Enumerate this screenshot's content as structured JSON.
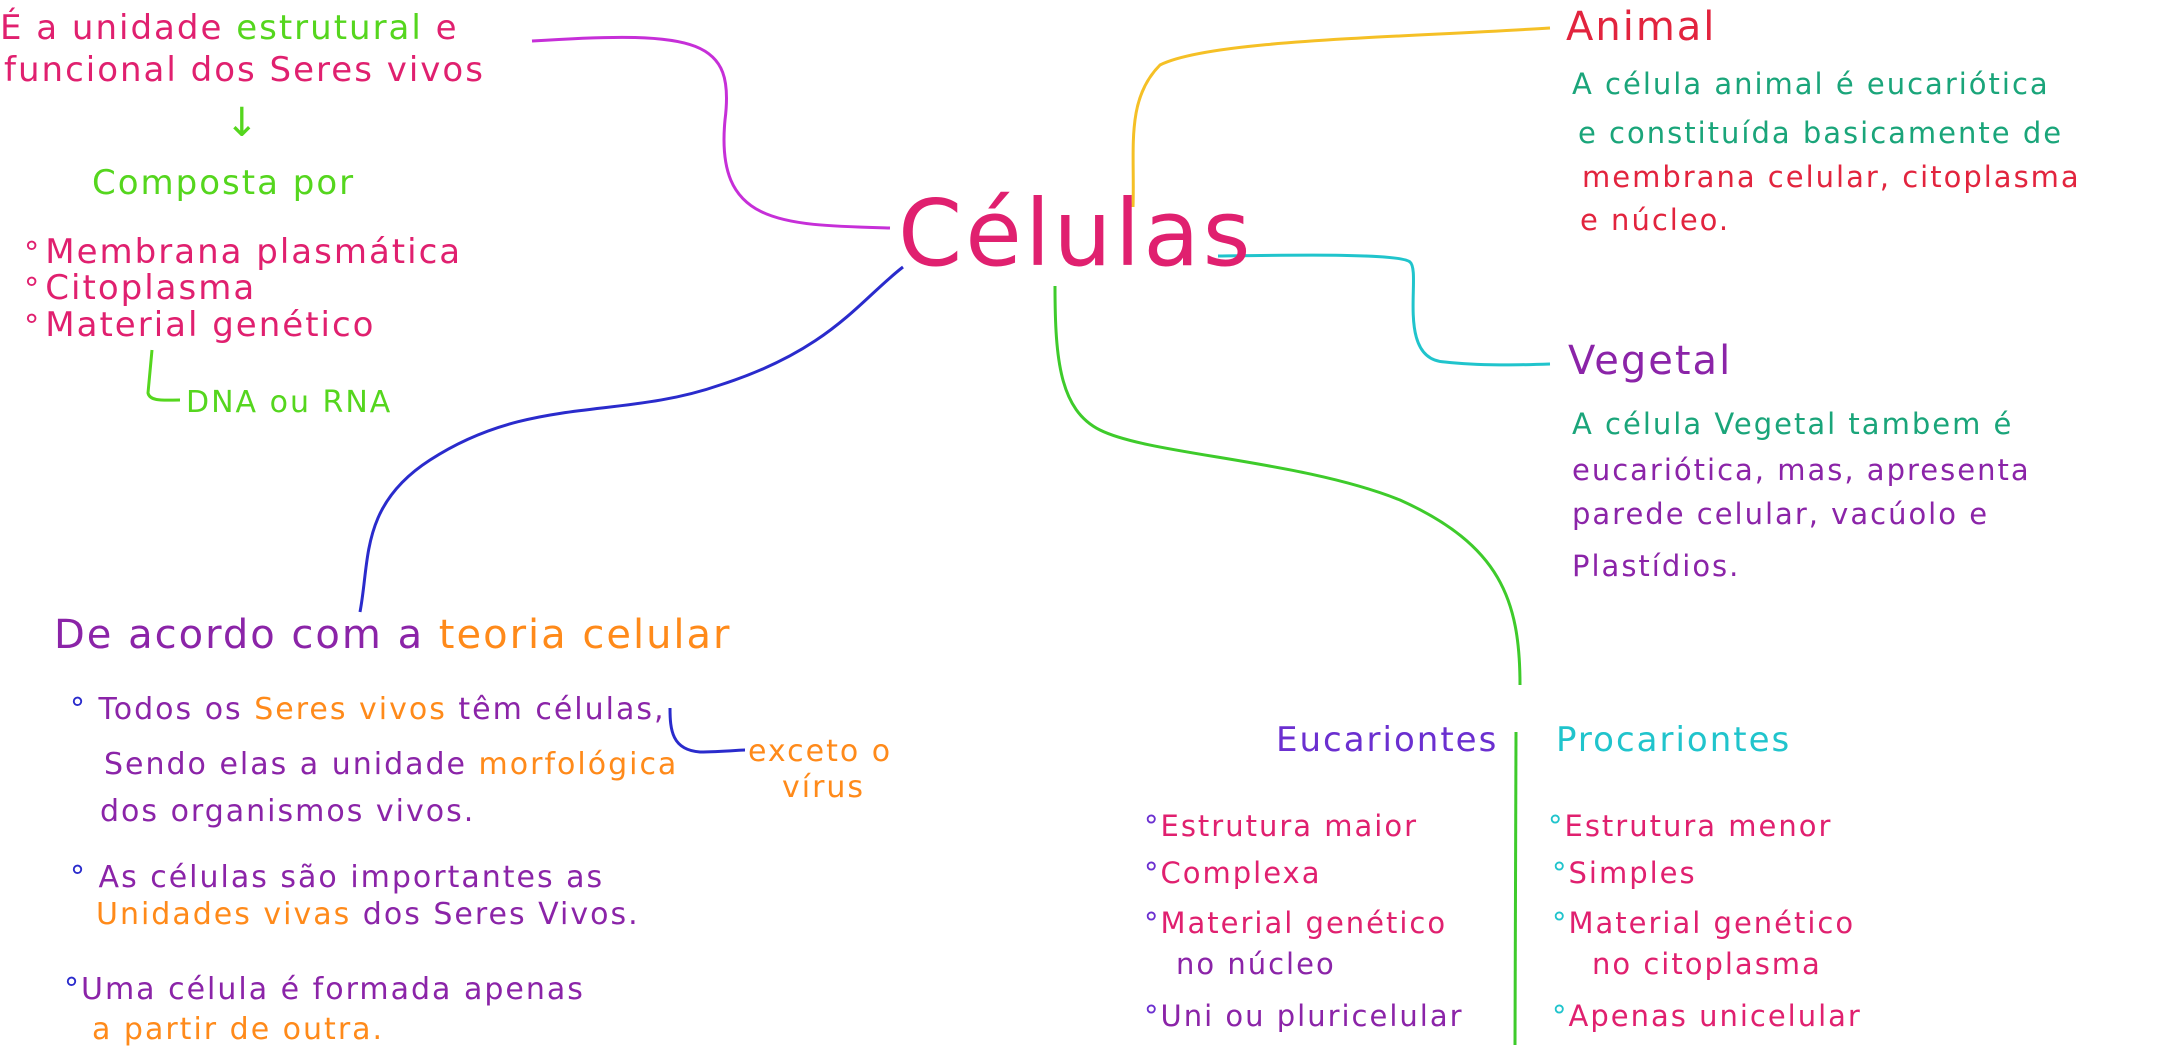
{
  "colors": {
    "magenta": "#e0206f",
    "purple": "#a82cd0",
    "violet": "#6b2fd0",
    "green": "#55d61e",
    "lineGreen": "#3ecb2b",
    "blue": "#2a2bcc",
    "orange": "#ff8a1a",
    "yellow": "#f5c026",
    "cyan": "#20c4cc",
    "teal": "#1aa57a",
    "purpleText": "#8b24a8",
    "redText": "#e2243e"
  },
  "center": {
    "label": "Células"
  },
  "definition": {
    "line1_pre": "É a unidade ",
    "line1_hl": "estrutural",
    "line1_post": " e",
    "line2": "funcional  dos Seres vivos"
  },
  "composition": {
    "arrow": "↓",
    "title": "Composta  por",
    "items": [
      "Membrana  plasmática",
      "Citoplasma",
      "Material genético"
    ],
    "sub": "DNA ou RNA"
  },
  "theory": {
    "title_pre": "De  acordo  com  a ",
    "title_hl": "teoria  celular",
    "p1_a": "Todos os ",
    "p1_hl": "Seres  vivos",
    "p1_b": "  têm  células,",
    "p1_line2_a": "Sendo  elas  a  unidade ",
    "p1_line2_hl": "morfológica",
    "p1_line3": "dos  organismos  vivos.",
    "note": "exceto  o",
    "note2": "vírus",
    "p2_line1": "As  células são  importantes  as",
    "p2_line2_hl": "Unidades  vivas",
    "p2_line2_b": "  dos  Seres Vivos.",
    "p3_line1": "Uma  célula  é  formada  apenas",
    "p3_line2": "a  partir  de  outra."
  },
  "animal": {
    "title": "Animal",
    "line1": "A célula  animal  é  eucariótica",
    "line2": "e  constituída  basicamente  de",
    "line3": "membrana  celular, citoplasma",
    "line4": "e  núcleo."
  },
  "vegetal": {
    "title": "Vegetal",
    "line1": "A célula  Vegetal  tambem  é",
    "line2": "eucariótica,  mas,  apresenta",
    "line3": "parede  celular,  vacúolo  e",
    "line4": "Plastídios."
  },
  "eukaryotes": {
    "title": "Eucariontes",
    "items": [
      "Estrutura maior",
      "Complexa",
      "Material  genético",
      "Uni ou pluricelular"
    ],
    "item3_line2": "no  núcleo"
  },
  "prokaryotes": {
    "title": "Procariontes",
    "items": [
      "Estrutura  menor",
      "Simples",
      "Material  genético",
      "Apenas  unicelular"
    ],
    "item3_line2": "no  citoplasma"
  }
}
